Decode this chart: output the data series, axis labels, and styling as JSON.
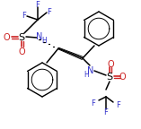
{
  "bg_color": "#ffffff",
  "black": "#000000",
  "blue": "#3333cc",
  "red": "#cc2222",
  "fig_width": 1.57,
  "fig_height": 1.44,
  "dpi": 100,
  "xlim": [
    0,
    157
  ],
  "ylim": [
    0,
    144
  ]
}
